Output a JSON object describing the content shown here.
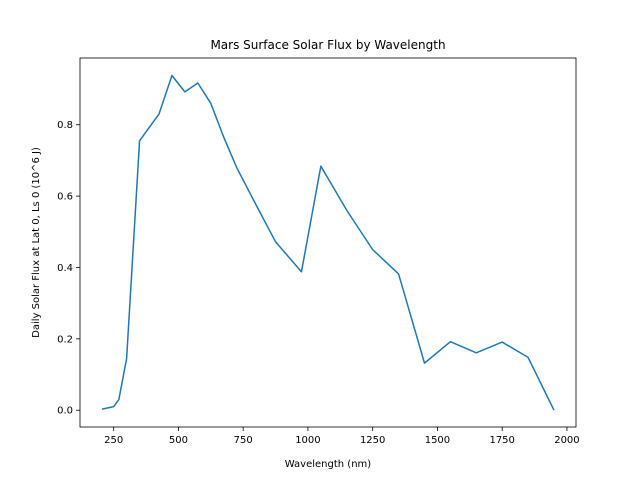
{
  "chart_data": {
    "type": "line",
    "title": "Mars Surface Solar Flux by Wavelength",
    "xlabel": "Wavelength (nm)",
    "ylabel": "Daily Solar Flux at Lat 0, Ls 0 (10^6 J)",
    "xlim": [
      120,
      2035
    ],
    "ylim": [
      -0.047,
      0.987
    ],
    "x_ticks": [
      250,
      500,
      750,
      1000,
      1250,
      1500,
      1750,
      2000
    ],
    "y_ticks": [
      0.0,
      0.2,
      0.4,
      0.6,
      0.8
    ],
    "y_tick_labels": [
      "0.0",
      "0.2",
      "0.4",
      "0.6",
      "0.8"
    ],
    "grid": false,
    "series": [
      {
        "color": "#1f77b4",
        "x": [
          205,
          250,
          270,
          300,
          350,
          425,
          475,
          525,
          575,
          625,
          675,
          725,
          800,
          875,
          975,
          1050,
          1150,
          1250,
          1350,
          1450,
          1550,
          1650,
          1750,
          1850,
          1950
        ],
        "y": [
          0.003,
          0.01,
          0.03,
          0.145,
          0.755,
          0.83,
          0.938,
          0.892,
          0.917,
          0.86,
          0.765,
          0.68,
          0.575,
          0.472,
          0.388,
          0.684,
          0.56,
          0.45,
          0.382,
          0.132,
          0.192,
          0.161,
          0.191,
          0.148,
          0.0
        ]
      }
    ]
  }
}
